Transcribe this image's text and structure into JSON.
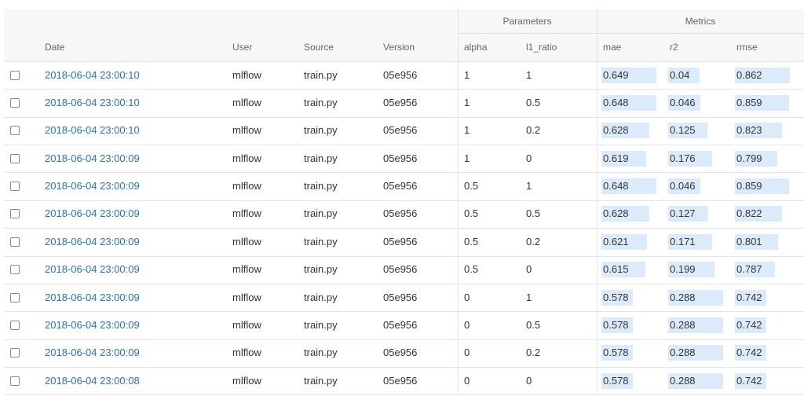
{
  "table": {
    "group_headers": [
      "Parameters",
      "Metrics"
    ],
    "columns": [
      "Date",
      "User",
      "Source",
      "Version",
      "alpha",
      "l1_ratio",
      "mae",
      "r2",
      "rmse"
    ],
    "rows": [
      [
        "2018-06-04 23:00:10",
        "mlflow",
        "train.py",
        "05e956",
        1,
        1,
        0.649,
        0.04,
        0.862
      ],
      [
        "2018-06-04 23:00:10",
        "mlflow",
        "train.py",
        "05e956",
        1,
        0.5,
        0.648,
        0.046,
        0.859
      ],
      [
        "2018-06-04 23:00:10",
        "mlflow",
        "train.py",
        "05e956",
        1,
        0.2,
        0.628,
        0.125,
        0.823
      ],
      [
        "2018-06-04 23:00:09",
        "mlflow",
        "train.py",
        "05e956",
        1,
        0,
        0.619,
        0.176,
        0.799
      ],
      [
        "2018-06-04 23:00:09",
        "mlflow",
        "train.py",
        "05e956",
        0.5,
        1,
        0.648,
        0.046,
        0.859
      ],
      [
        "2018-06-04 23:00:09",
        "mlflow",
        "train.py",
        "05e956",
        0.5,
        0.5,
        0.628,
        0.127,
        0.822
      ],
      [
        "2018-06-04 23:00:09",
        "mlflow",
        "train.py",
        "05e956",
        0.5,
        0.2,
        0.621,
        0.171,
        0.801
      ],
      [
        "2018-06-04 23:00:09",
        "mlflow",
        "train.py",
        "05e956",
        0.5,
        0,
        0.615,
        0.199,
        0.787
      ],
      [
        "2018-06-04 23:00:09",
        "mlflow",
        "train.py",
        "05e956",
        0,
        1,
        0.578,
        0.288,
        0.742
      ],
      [
        "2018-06-04 23:00:09",
        "mlflow",
        "train.py",
        "05e956",
        0,
        0.5,
        0.578,
        0.288,
        0.742
      ],
      [
        "2018-06-04 23:00:09",
        "mlflow",
        "train.py",
        "05e956",
        0,
        0.2,
        0.578,
        0.288,
        0.742
      ],
      [
        "2018-06-04 23:00:08",
        "mlflow",
        "train.py",
        "05e956",
        0,
        0,
        0.578,
        0.288,
        0.742
      ]
    ]
  }
}
